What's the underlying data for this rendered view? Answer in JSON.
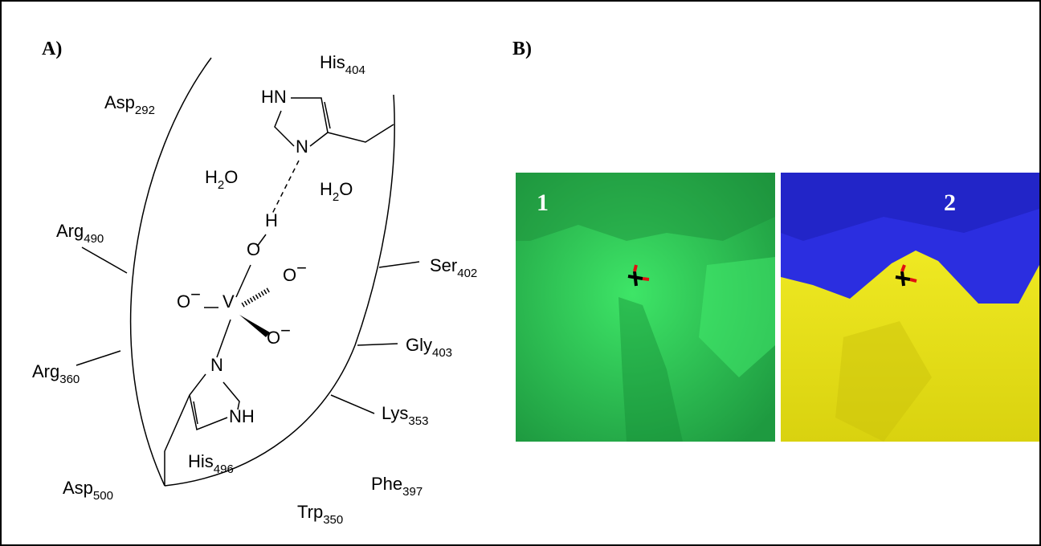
{
  "panel_a": {
    "label": "A)",
    "labels": [
      {
        "text": "Asp",
        "sub": "292"
      },
      {
        "text": "His",
        "sub": "404"
      },
      {
        "text": "Arg",
        "sub": "490"
      },
      {
        "text": "Ser",
        "sub": "402"
      },
      {
        "text": "Arg",
        "sub": "360"
      },
      {
        "text": "Gly",
        "sub": "403"
      },
      {
        "text": "Lys",
        "sub": "353"
      },
      {
        "text": "Asp",
        "sub": "500"
      },
      {
        "text": "Trp",
        "sub": "350"
      },
      {
        "text": "Phe",
        "sub": "397"
      },
      {
        "text": "His",
        "sub": "496"
      },
      {
        "text": "HN"
      },
      {
        "text": "N"
      },
      {
        "text": "H",
        "sub": "2",
        "tail": "O"
      },
      {
        "text": "H",
        "sub": "2",
        "tail": "O"
      },
      {
        "text": "H"
      },
      {
        "text": "O"
      },
      {
        "text": "O",
        "sup": "−"
      },
      {
        "text": "V"
      },
      {
        "text": "O",
        "sup": "−"
      },
      {
        "text": "O",
        "sup": "−"
      },
      {
        "text": "N"
      },
      {
        "text": "NH"
      }
    ]
  },
  "panel_b": {
    "label": "B)",
    "images": [
      "1",
      "2"
    ]
  }
}
